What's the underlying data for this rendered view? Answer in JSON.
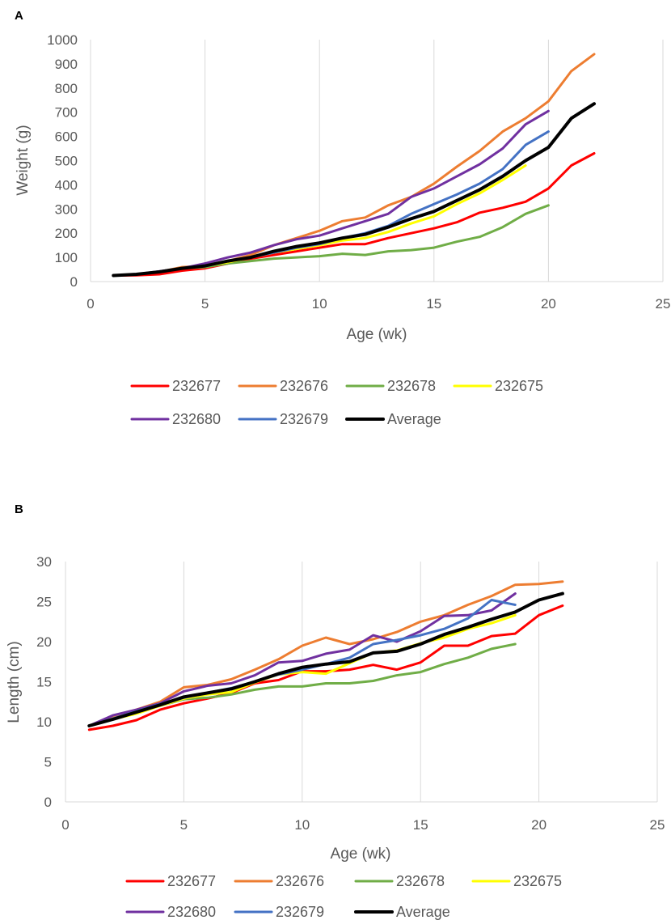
{
  "chart_data": [
    {
      "panel_label": "A",
      "type": "line",
      "xlabel": "Age (wk)",
      "ylabel": "Weight (g)",
      "xlim": [
        0,
        25
      ],
      "ylim": [
        0,
        1000
      ],
      "xticks": [
        0,
        5,
        10,
        15,
        20,
        25
      ],
      "yticks": [
        0,
        100,
        200,
        300,
        400,
        500,
        600,
        700,
        800,
        900,
        1000
      ],
      "grid": "vertical",
      "legend_position": "bottom",
      "series": [
        {
          "name": "232677",
          "color": "#ff0000",
          "x": [
            1,
            2,
            3,
            4,
            5,
            6,
            7,
            8,
            9,
            10,
            11,
            12,
            13,
            14,
            15,
            16,
            17,
            18,
            19,
            20,
            21,
            22
          ],
          "y": [
            25,
            26,
            30,
            45,
            55,
            75,
            95,
            110,
            125,
            140,
            155,
            155,
            180,
            200,
            220,
            245,
            285,
            305,
            330,
            385,
            480,
            530
          ]
        },
        {
          "name": "232676",
          "color": "#ed7d31",
          "x": [
            1,
            2,
            3,
            4,
            5,
            6,
            7,
            8,
            9,
            10,
            11,
            12,
            13,
            14,
            15,
            16,
            17,
            18,
            19,
            20,
            21,
            22
          ],
          "y": [
            25,
            30,
            40,
            60,
            65,
            85,
            110,
            150,
            180,
            210,
            250,
            265,
            315,
            350,
            405,
            475,
            540,
            620,
            675,
            745,
            870,
            940
          ]
        },
        {
          "name": "232678",
          "color": "#70ad47",
          "x": [
            1,
            2,
            3,
            4,
            5,
            6,
            7,
            8,
            9,
            10,
            11,
            12,
            13,
            14,
            15,
            16,
            17,
            18,
            19,
            20
          ],
          "y": [
            25,
            30,
            40,
            55,
            60,
            75,
            85,
            95,
            100,
            105,
            115,
            110,
            125,
            130,
            140,
            165,
            185,
            225,
            280,
            315
          ]
        },
        {
          "name": "232675",
          "color": "#ffff00",
          "x": [
            1,
            2,
            3,
            4,
            5,
            6,
            7,
            8,
            9,
            10,
            11,
            12,
            13,
            14,
            15,
            16,
            17,
            18,
            19
          ],
          "y": [
            25,
            30,
            40,
            55,
            65,
            80,
            100,
            120,
            135,
            150,
            170,
            180,
            205,
            240,
            270,
            320,
            365,
            420,
            480
          ]
        },
        {
          "name": "232680",
          "color": "#7030a0",
          "x": [
            1,
            2,
            3,
            4,
            5,
            6,
            7,
            8,
            9,
            10,
            11,
            12,
            13,
            14,
            15,
            16,
            17,
            18,
            19,
            20
          ],
          "y": [
            25,
            30,
            42,
            55,
            75,
            100,
            120,
            150,
            175,
            190,
            220,
            250,
            280,
            350,
            385,
            435,
            485,
            550,
            650,
            705
          ]
        },
        {
          "name": "232679",
          "color": "#4472c4",
          "x": [
            1,
            2,
            3,
            4,
            5,
            6,
            7,
            8,
            9,
            10,
            11,
            12,
            13,
            14,
            15,
            16,
            17,
            18,
            19,
            20
          ],
          "y": [
            25,
            30,
            40,
            55,
            65,
            85,
            100,
            120,
            140,
            155,
            180,
            200,
            230,
            280,
            320,
            360,
            405,
            465,
            565,
            620
          ]
        },
        {
          "name": "Average",
          "color": "#000000",
          "x": [
            1,
            2,
            3,
            4,
            5,
            6,
            7,
            8,
            9,
            10,
            11,
            12,
            13,
            14,
            15,
            16,
            17,
            18,
            19,
            20,
            21,
            22
          ],
          "y": [
            25,
            30,
            40,
            55,
            65,
            85,
            100,
            125,
            145,
            160,
            180,
            195,
            225,
            260,
            290,
            335,
            380,
            435,
            500,
            555,
            675,
            735
          ]
        }
      ]
    },
    {
      "panel_label": "B",
      "type": "line",
      "xlabel": "Age (wk)",
      "ylabel": "Length (cm)",
      "xlim": [
        0,
        25
      ],
      "ylim": [
        0,
        30
      ],
      "xticks": [
        0,
        5,
        10,
        15,
        20,
        25
      ],
      "yticks": [
        0,
        5,
        10,
        15,
        20,
        25,
        30
      ],
      "grid": "vertical",
      "legend_position": "bottom",
      "series": [
        {
          "name": "232677",
          "color": "#ff0000",
          "x": [
            1,
            2,
            3,
            4,
            5,
            6,
            7,
            8,
            9,
            10,
            11,
            12,
            13,
            14,
            15,
            16,
            17,
            18,
            19,
            20,
            21
          ],
          "y": [
            9.0,
            9.5,
            10.2,
            11.5,
            12.3,
            12.9,
            13.6,
            14.8,
            15.2,
            16.3,
            16.3,
            16.5,
            17.1,
            16.5,
            17.4,
            19.5,
            19.5,
            20.7,
            21.0,
            23.3,
            24.5
          ]
        },
        {
          "name": "232676",
          "color": "#ed7d31",
          "x": [
            1,
            2,
            3,
            4,
            5,
            6,
            7,
            8,
            9,
            10,
            11,
            12,
            13,
            14,
            15,
            16,
            17,
            18,
            19,
            20,
            21
          ],
          "y": [
            9.5,
            10.5,
            11.5,
            12.5,
            14.3,
            14.6,
            15.3,
            16.5,
            17.8,
            19.5,
            20.5,
            19.7,
            20.3,
            21.2,
            22.5,
            23.3,
            24.6,
            25.7,
            27.1,
            27.2,
            27.5
          ]
        },
        {
          "name": "232678",
          "color": "#70ad47",
          "x": [
            1,
            2,
            3,
            4,
            5,
            6,
            7,
            8,
            9,
            10,
            11,
            12,
            13,
            14,
            15,
            16,
            17,
            18,
            19
          ],
          "y": [
            9.5,
            10.3,
            11.2,
            12.0,
            12.8,
            13.0,
            13.4,
            14.0,
            14.4,
            14.4,
            14.8,
            14.8,
            15.1,
            15.8,
            16.2,
            17.2,
            18.0,
            19.1,
            19.7
          ]
        },
        {
          "name": "232675",
          "color": "#ffff00",
          "x": [
            1,
            2,
            3,
            4,
            5,
            6,
            7,
            8,
            9,
            10,
            11,
            12,
            13,
            14,
            15,
            16,
            17,
            18,
            19
          ],
          "y": [
            9.5,
            10.3,
            11.0,
            12.0,
            12.9,
            13.4,
            13.7,
            14.9,
            15.9,
            16.2,
            16.0,
            17.3,
            18.6,
            18.9,
            19.8,
            20.5,
            21.6,
            22.3,
            23.3
          ]
        },
        {
          "name": "232680",
          "color": "#7030a0",
          "x": [
            1,
            2,
            3,
            4,
            5,
            6,
            7,
            8,
            9,
            10,
            11,
            12,
            13,
            14,
            15,
            16,
            17,
            18,
            19
          ],
          "y": [
            9.5,
            10.8,
            11.5,
            12.3,
            13.8,
            14.5,
            14.8,
            15.8,
            17.4,
            17.6,
            18.5,
            19.0,
            20.8,
            20.0,
            21.3,
            23.2,
            23.3,
            23.9,
            26.0
          ]
        },
        {
          "name": "232679",
          "color": "#4472c4",
          "x": [
            1,
            2,
            3,
            4,
            5,
            6,
            7,
            8,
            9,
            10,
            11,
            12,
            13,
            14,
            15,
            16,
            17,
            18,
            19
          ],
          "y": [
            9.5,
            10.4,
            11.3,
            12.2,
            13.0,
            13.6,
            14.2,
            15.0,
            15.9,
            16.5,
            17.2,
            18.0,
            19.7,
            20.2,
            20.8,
            21.6,
            22.9,
            25.2,
            24.6
          ]
        },
        {
          "name": "Average",
          "color": "#000000",
          "x": [
            1,
            2,
            3,
            4,
            5,
            6,
            7,
            8,
            9,
            10,
            11,
            12,
            13,
            14,
            15,
            16,
            17,
            18,
            19,
            20,
            21
          ],
          "y": [
            9.5,
            10.3,
            11.2,
            12.1,
            13.1,
            13.6,
            14.1,
            15.0,
            16.0,
            16.8,
            17.2,
            17.5,
            18.6,
            18.8,
            19.7,
            20.9,
            21.8,
            22.8,
            23.7,
            25.2,
            26.0
          ]
        }
      ]
    }
  ]
}
